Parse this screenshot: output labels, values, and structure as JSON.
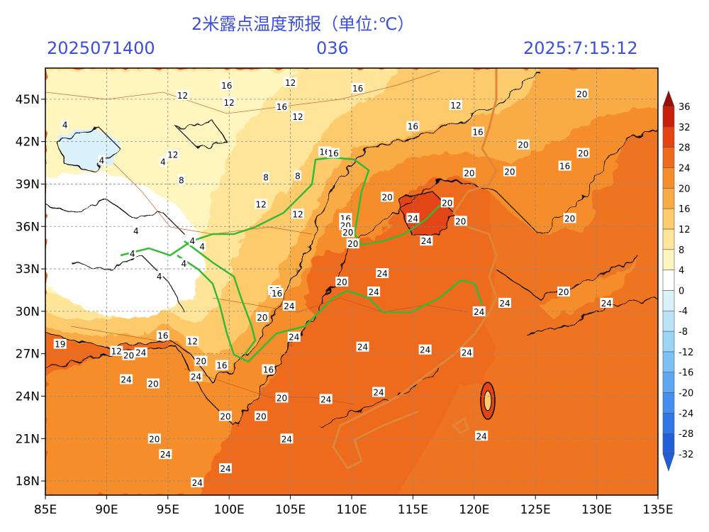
{
  "header": {
    "title": "2米露点温度预报（单位:℃）",
    "init_time": "2025071400",
    "forecast_hour": "036",
    "valid_time": "2025:7:15:12"
  },
  "map": {
    "lon_labels": [
      "85E",
      "90E",
      "95E",
      "100E",
      "105E",
      "110E",
      "115E",
      "120E",
      "125E",
      "130E",
      "135E"
    ],
    "lat_labels": [
      "45N",
      "42N",
      "39N",
      "36N",
      "33N",
      "30N",
      "27N",
      "24N",
      "21N",
      "18N"
    ],
    "colorbar": {
      "levels": [
        -32,
        -28,
        -24,
        -20,
        -16,
        -12,
        -8,
        -4,
        0,
        4,
        8,
        12,
        16,
        20,
        24,
        28,
        32,
        36
      ],
      "labels": [
        "-32",
        "-28",
        "-24",
        "-20",
        "-16",
        "-12",
        "-8",
        "-4",
        "0",
        "4",
        "8",
        "12",
        "16",
        "20",
        "24",
        "28",
        "32",
        "36"
      ],
      "colors": [
        "#1f5fd8",
        "#2f77e6",
        "#4590ee",
        "#5ea8f2",
        "#7cc0f4",
        "#9cd4f5",
        "#bce4f7",
        "#dcf2fa",
        "#ffffff",
        "#fff6bf",
        "#ffe59a",
        "#fdca6c",
        "#f9ab45",
        "#f58e2a",
        "#ee6a1c",
        "#e34412",
        "#c8200c",
        "#9a0d06"
      ]
    },
    "contour_labels": [
      {
        "text": "12",
        "lon": 96.2,
        "lat": 45.3
      },
      {
        "text": "16",
        "lon": 99.8,
        "lat": 46.0
      },
      {
        "text": "12",
        "lon": 100.0,
        "lat": 44.8
      },
      {
        "text": "16",
        "lon": 104.3,
        "lat": 44.5
      },
      {
        "text": "12",
        "lon": 105.6,
        "lat": 43.8
      },
      {
        "text": "12",
        "lon": 105.0,
        "lat": 46.2
      },
      {
        "text": "16",
        "lon": 110.5,
        "lat": 45.8
      },
      {
        "text": "12",
        "lon": 118.5,
        "lat": 44.6
      },
      {
        "text": "20",
        "lon": 128.8,
        "lat": 45.4
      },
      {
        "text": "16",
        "lon": 115.0,
        "lat": 43.1
      },
      {
        "text": "16",
        "lon": 120.3,
        "lat": 42.7
      },
      {
        "text": "20",
        "lon": 124.0,
        "lat": 41.8
      },
      {
        "text": "20",
        "lon": 128.9,
        "lat": 41.2
      },
      {
        "text": "16",
        "lon": 127.4,
        "lat": 40.3
      },
      {
        "text": "20",
        "lon": 122.9,
        "lat": 39.9
      },
      {
        "text": "20",
        "lon": 119.6,
        "lat": 39.8
      },
      {
        "text": "16",
        "lon": 107.8,
        "lat": 41.3
      },
      {
        "text": "16",
        "lon": 108.5,
        "lat": 41.2
      },
      {
        "text": "20",
        "lon": 112.9,
        "lat": 38.1
      },
      {
        "text": "20",
        "lon": 117.8,
        "lat": 37.7
      },
      {
        "text": "20",
        "lon": 118.9,
        "lat": 36.4
      },
      {
        "text": "20",
        "lon": 127.8,
        "lat": 36.6
      },
      {
        "text": "24",
        "lon": 115.0,
        "lat": 36.6
      },
      {
        "text": "16",
        "lon": 109.5,
        "lat": 36.6
      },
      {
        "text": "20",
        "lon": 109.5,
        "lat": 36.1
      },
      {
        "text": "20",
        "lon": 109.7,
        "lat": 35.6
      },
      {
        "text": "20",
        "lon": 110.1,
        "lat": 34.8
      },
      {
        "text": "24",
        "lon": 116.1,
        "lat": 35.0
      },
      {
        "text": "12",
        "lon": 102.6,
        "lat": 37.6
      },
      {
        "text": "12",
        "lon": 105.6,
        "lat": 36.9
      },
      {
        "text": "8",
        "lon": 96.1,
        "lat": 39.3
      },
      {
        "text": "8",
        "lon": 103.0,
        "lat": 39.5
      },
      {
        "text": "8",
        "lon": 105.6,
        "lat": 39.6
      },
      {
        "text": "12",
        "lon": 95.4,
        "lat": 41.1
      },
      {
        "text": "4",
        "lon": 89.6,
        "lat": 40.7
      },
      {
        "text": "4",
        "lon": 86.6,
        "lat": 43.2
      },
      {
        "text": "4",
        "lon": 94.6,
        "lat": 40.6
      },
      {
        "text": "4",
        "lon": 92.4,
        "lat": 35.7
      },
      {
        "text": "4",
        "lon": 97.0,
        "lat": 35.0
      },
      {
        "text": "4",
        "lon": 97.8,
        "lat": 34.6
      },
      {
        "text": "4",
        "lon": 92.1,
        "lat": 34.1
      },
      {
        "text": "4",
        "lon": 94.3,
        "lat": 32.5
      },
      {
        "text": "4",
        "lon": 96.3,
        "lat": 33.4
      },
      {
        "text": "24",
        "lon": 112.5,
        "lat": 32.7
      },
      {
        "text": "20",
        "lon": 109.2,
        "lat": 32.1
      },
      {
        "text": "24",
        "lon": 111.8,
        "lat": 31.4
      },
      {
        "text": "16",
        "lon": 103.7,
        "lat": 31.5
      },
      {
        "text": "16",
        "lon": 103.9,
        "lat": 31.3
      },
      {
        "text": "24",
        "lon": 104.9,
        "lat": 30.4
      },
      {
        "text": "20",
        "lon": 102.7,
        "lat": 29.6
      },
      {
        "text": "24",
        "lon": 120.4,
        "lat": 30.0
      },
      {
        "text": "24",
        "lon": 122.5,
        "lat": 30.6
      },
      {
        "text": "20",
        "lon": 127.3,
        "lat": 31.4
      },
      {
        "text": "24",
        "lon": 130.8,
        "lat": 30.6
      },
      {
        "text": "24",
        "lon": 105.3,
        "lat": 28.2
      },
      {
        "text": "24",
        "lon": 110.9,
        "lat": 27.5
      },
      {
        "text": "24",
        "lon": 116.0,
        "lat": 27.3
      },
      {
        "text": "24",
        "lon": 119.4,
        "lat": 27.1
      },
      {
        "text": "16",
        "lon": 94.6,
        "lat": 28.3
      },
      {
        "text": "12",
        "lon": 97.0,
        "lat": 27.9
      },
      {
        "text": "12",
        "lon": 90.8,
        "lat": 27.2
      },
      {
        "text": "20",
        "lon": 91.8,
        "lat": 26.9
      },
      {
        "text": "24",
        "lon": 92.8,
        "lat": 27.1
      },
      {
        "text": "19",
        "lon": 86.2,
        "lat": 27.7
      },
      {
        "text": "20",
        "lon": 97.7,
        "lat": 26.5
      },
      {
        "text": "16",
        "lon": 99.4,
        "lat": 26.2
      },
      {
        "text": "16",
        "lon": 103.2,
        "lat": 25.9
      },
      {
        "text": "24",
        "lon": 97.3,
        "lat": 25.4
      },
      {
        "text": "24",
        "lon": 91.6,
        "lat": 25.2
      },
      {
        "text": "20",
        "lon": 93.8,
        "lat": 24.9
      },
      {
        "text": "20",
        "lon": 104.3,
        "lat": 23.9
      },
      {
        "text": "24",
        "lon": 107.9,
        "lat": 23.8
      },
      {
        "text": "24",
        "lon": 112.2,
        "lat": 24.3
      },
      {
        "text": "20",
        "lon": 99.7,
        "lat": 22.6
      },
      {
        "text": "20",
        "lon": 102.6,
        "lat": 22.6
      },
      {
        "text": "24",
        "lon": 120.6,
        "lat": 21.2
      },
      {
        "text": "20",
        "lon": 93.9,
        "lat": 21.0
      },
      {
        "text": "24",
        "lon": 94.8,
        "lat": 19.9
      },
      {
        "text": "24",
        "lon": 104.7,
        "lat": 21.0
      },
      {
        "text": "24",
        "lon": 99.7,
        "lat": 18.9
      },
      {
        "text": "24",
        "lon": 97.4,
        "lat": 17.9
      }
    ]
  }
}
